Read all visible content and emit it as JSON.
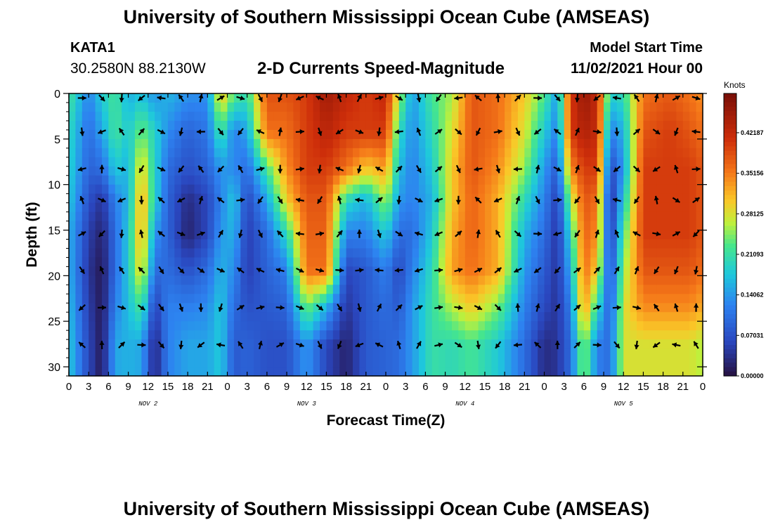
{
  "header": {
    "title": "University of Southern Mississippi Ocean Cube (AMSEAS)",
    "station_id": "KATA1",
    "coordinates": "30.2580N  88.2130W",
    "subtitle": "2-D Currents Speed-Magnitude",
    "model_start_label": "Model Start Time",
    "model_start_value": "11/02/2021 Hour 00"
  },
  "footer": {
    "title_repeat": "University of Southern Mississippi Ocean Cube (AMSEAS)"
  },
  "chart_data": {
    "type": "heatmap",
    "title": "2-D Currents Speed-Magnitude",
    "xlabel": "Forecast Time(Z)",
    "ylabel": "Depth (ft)",
    "x_ticks": [
      "0",
      "3",
      "6",
      "9",
      "12",
      "15",
      "18",
      "21",
      "0",
      "3",
      "6",
      "9",
      "12",
      "15",
      "18",
      "21",
      "0",
      "3",
      "6",
      "9",
      "12",
      "15",
      "18",
      "21",
      "0",
      "3",
      "6",
      "9",
      "12",
      "15",
      "18",
      "21",
      "0"
    ],
    "x_range_hours": [
      0,
      96
    ],
    "date_labels": [
      {
        "label": "NOV 2",
        "hour": 12
      },
      {
        "label": "NOV 3",
        "hour": 36
      },
      {
        "label": "NOV 4",
        "hour": 60
      },
      {
        "label": "NOV 5",
        "hour": 84
      }
    ],
    "y_ticks": [
      0,
      5,
      10,
      15,
      20,
      25,
      30
    ],
    "ylim": [
      0,
      31
    ],
    "y_inverted": true,
    "colorbar": {
      "label": "Knots",
      "ticks": [
        "0.00000",
        "0.07031",
        "0.14062",
        "0.21093",
        "0.28125",
        "0.35156",
        "0.42187"
      ],
      "range": [
        0,
        0.49
      ]
    },
    "vector_depths_ft": [
      0.5,
      4.2,
      8.3,
      11.7,
      15.4,
      19.4,
      23.5,
      27.6
    ],
    "vector_hours": [
      2,
      5,
      8,
      11,
      14,
      17,
      20,
      23,
      26,
      29,
      32,
      35,
      38,
      41,
      44,
      47,
      50,
      53,
      56,
      59,
      62,
      65,
      68,
      71,
      74,
      77,
      80,
      83,
      86,
      89,
      92,
      95
    ],
    "speed_profiles": [
      {
        "hour": 0,
        "speeds": [
          0.22,
          0.2,
          0.19,
          0.18,
          0.16,
          0.16,
          0.17,
          0.18
        ]
      },
      {
        "hour": 3,
        "speeds": [
          0.12,
          0.1,
          0.09,
          0.07,
          0.05,
          0.04,
          0.05,
          0.06
        ]
      },
      {
        "hour": 5,
        "speeds": [
          0.18,
          0.15,
          0.1,
          0.04,
          0.02,
          0.01,
          0.01,
          0.01
        ]
      },
      {
        "hour": 7,
        "speeds": [
          0.22,
          0.22,
          0.18,
          0.12,
          0.1,
          0.1,
          0.12,
          0.15
        ]
      },
      {
        "hour": 9,
        "speeds": [
          0.16,
          0.18,
          0.16,
          0.16,
          0.18,
          0.18,
          0.17,
          0.16
        ]
      },
      {
        "hour": 11,
        "speeds": [
          0.18,
          0.24,
          0.3,
          0.33,
          0.33,
          0.3,
          0.22,
          0.15
        ]
      },
      {
        "hour": 13,
        "speeds": [
          0.14,
          0.19,
          0.19,
          0.19,
          0.14,
          0.1,
          0.05,
          0.02
        ]
      },
      {
        "hour": 15,
        "speeds": [
          0.16,
          0.13,
          0.1,
          0.09,
          0.09,
          0.1,
          0.12,
          0.12
        ]
      },
      {
        "hour": 18,
        "speeds": [
          0.13,
          0.09,
          0.07,
          0.03,
          0.02,
          0.07,
          0.12,
          0.15
        ]
      },
      {
        "hour": 21,
        "speeds": [
          0.13,
          0.11,
          0.09,
          0.06,
          0.06,
          0.1,
          0.13,
          0.15
        ]
      },
      {
        "hour": 23,
        "speeds": [
          0.3,
          0.22,
          0.14,
          0.12,
          0.14,
          0.16,
          0.18,
          0.18
        ]
      },
      {
        "hour": 25,
        "speeds": [
          0.22,
          0.12,
          0.13,
          0.18,
          0.16,
          0.13,
          0.1,
          0.08
        ]
      },
      {
        "hour": 27,
        "speeds": [
          0.2,
          0.15,
          0.1,
          0.06,
          0.05,
          0.05,
          0.07,
          0.09
        ]
      },
      {
        "hour": 30,
        "speeds": [
          0.38,
          0.36,
          0.22,
          0.15,
          0.1,
          0.09,
          0.08,
          0.07
        ]
      },
      {
        "hour": 33,
        "speeds": [
          0.38,
          0.36,
          0.34,
          0.3,
          0.2,
          0.12,
          0.09,
          0.07
        ]
      },
      {
        "hour": 36,
        "speeds": [
          0.4,
          0.4,
          0.4,
          0.38,
          0.37,
          0.36,
          0.24,
          0.14
        ]
      },
      {
        "hour": 39,
        "speeds": [
          0.45,
          0.43,
          0.4,
          0.38,
          0.37,
          0.36,
          0.16,
          0.06
        ]
      },
      {
        "hour": 42,
        "speeds": [
          0.42,
          0.4,
          0.36,
          0.2,
          0.12,
          0.06,
          0.04,
          0.02
        ]
      },
      {
        "hour": 45,
        "speeds": [
          0.4,
          0.4,
          0.3,
          0.16,
          0.12,
          0.08,
          0.08,
          0.08
        ]
      },
      {
        "hour": 48,
        "speeds": [
          0.42,
          0.4,
          0.33,
          0.26,
          0.18,
          0.12,
          0.1,
          0.09
        ]
      },
      {
        "hour": 50,
        "speeds": [
          0.26,
          0.2,
          0.17,
          0.14,
          0.1,
          0.06,
          0.08,
          0.1
        ]
      },
      {
        "hour": 52,
        "speeds": [
          0.14,
          0.13,
          0.12,
          0.12,
          0.1,
          0.12,
          0.14,
          0.14
        ]
      },
      {
        "hour": 55,
        "speeds": [
          0.22,
          0.2,
          0.18,
          0.16,
          0.18,
          0.2,
          0.21,
          0.21
        ]
      },
      {
        "hour": 58,
        "speeds": [
          0.26,
          0.28,
          0.3,
          0.3,
          0.32,
          0.33,
          0.26,
          0.2
        ]
      },
      {
        "hour": 61,
        "speeds": [
          0.38,
          0.38,
          0.38,
          0.37,
          0.37,
          0.36,
          0.3,
          0.22
        ]
      },
      {
        "hour": 65,
        "speeds": [
          0.36,
          0.36,
          0.34,
          0.32,
          0.32,
          0.32,
          0.24,
          0.18
        ]
      },
      {
        "hour": 69,
        "speeds": [
          0.3,
          0.28,
          0.25,
          0.2,
          0.16,
          0.14,
          0.12,
          0.1
        ]
      },
      {
        "hour": 72,
        "speeds": [
          0.22,
          0.18,
          0.14,
          0.12,
          0.1,
          0.08,
          0.06,
          0.03
        ]
      },
      {
        "hour": 74,
        "speeds": [
          0.14,
          0.12,
          0.08,
          0.05,
          0.04,
          0.04,
          0.04,
          0.04
        ]
      },
      {
        "hour": 76,
        "speeds": [
          0.4,
          0.4,
          0.34,
          0.26,
          0.2,
          0.16,
          0.12,
          0.1
        ]
      },
      {
        "hour": 78,
        "speeds": [
          0.46,
          0.44,
          0.4,
          0.38,
          0.37,
          0.36,
          0.34,
          0.26
        ]
      },
      {
        "hour": 80,
        "speeds": [
          0.42,
          0.42,
          0.4,
          0.36,
          0.34,
          0.3,
          0.2,
          0.12
        ]
      },
      {
        "hour": 82,
        "speeds": [
          0.18,
          0.12,
          0.06,
          0.03,
          0.04,
          0.06,
          0.08,
          0.1
        ]
      },
      {
        "hour": 84,
        "speeds": [
          0.2,
          0.16,
          0.14,
          0.18,
          0.22,
          0.25,
          0.28,
          0.28
        ]
      },
      {
        "hour": 87,
        "speeds": [
          0.36,
          0.38,
          0.4,
          0.4,
          0.4,
          0.38,
          0.34,
          0.28
        ]
      },
      {
        "hour": 91,
        "speeds": [
          0.38,
          0.4,
          0.4,
          0.4,
          0.4,
          0.38,
          0.34,
          0.28
        ]
      },
      {
        "hour": 94,
        "speeds": [
          0.36,
          0.38,
          0.4,
          0.4,
          0.4,
          0.38,
          0.34,
          0.28
        ]
      },
      {
        "hour": 96,
        "speeds": [
          0.34,
          0.36,
          0.38,
          0.38,
          0.38,
          0.36,
          0.32,
          0.26
        ]
      }
    ]
  }
}
